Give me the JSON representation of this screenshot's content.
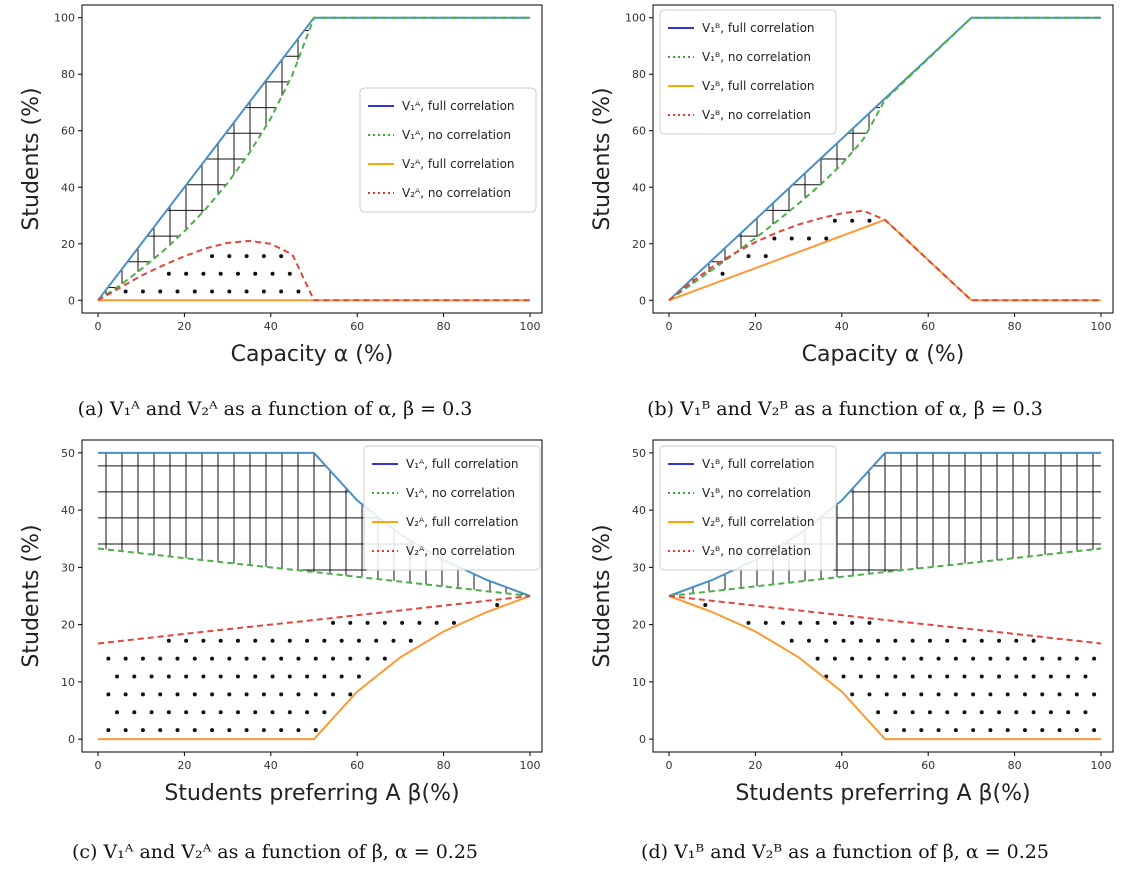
{
  "chart_data": [
    {
      "type": "line",
      "panel": "a",
      "caption": "(a) V₁ᴬ and V₂ᴬ as a function of α, β = 0.3",
      "xlabel": "Capacity α (%)",
      "ylabel": "Students (%)",
      "xlim": [
        0,
        100
      ],
      "ylim": [
        0,
        100
      ],
      "xticks": [
        0,
        20,
        40,
        60,
        80,
        100
      ],
      "yticks": [
        0,
        20,
        40,
        60,
        80,
        100
      ],
      "legend_position": "center-right",
      "legend": [
        "V₁ᴬ, full correlation",
        "V₁ᴬ, no correlation",
        "V₂ᴬ, full correlation",
        "V₂ᴬ, no correlation"
      ],
      "series": [
        {
          "name": "V₁ᴬ, full correlation",
          "color": "#4a90c4",
          "x": [
            0,
            50,
            100
          ],
          "y": [
            0,
            100,
            100
          ]
        },
        {
          "name": "V₁ᴬ, no correlation",
          "color": "#4daf4a",
          "x": [
            0,
            5,
            10,
            15,
            20,
            25,
            30,
            35,
            40,
            45,
            50,
            100
          ],
          "y": [
            0,
            5.2,
            11,
            17.3,
            24.4,
            32.4,
            41.5,
            52,
            64.4,
            79.8,
            100,
            100
          ]
        },
        {
          "name": "V₂ᴬ, full correlation",
          "color": "#ff9933",
          "x": [
            0,
            100
          ],
          "y": [
            0,
            0
          ]
        },
        {
          "name": "V₂ᴬ, no correlation",
          "color": "#e0463c",
          "x": [
            0,
            5,
            10,
            15,
            20,
            25,
            30,
            35,
            40,
            45,
            50,
            100
          ],
          "y": [
            0,
            4.4,
            8.7,
            12.3,
            15.6,
            18.4,
            20.3,
            21,
            20,
            16.2,
            0,
            0
          ]
        }
      ],
      "hatch": [
        {
          "pattern": "grid",
          "between": [
            0,
            1
          ],
          "x_range": [
            0,
            50
          ]
        },
        {
          "pattern": "dots",
          "between": [
            3,
            2
          ],
          "x_range": [
            0,
            50
          ]
        }
      ]
    },
    {
      "type": "line",
      "panel": "b",
      "caption": "(b) V₁ᴮ and V₂ᴮ as a function of α, β = 0.3",
      "xlabel": "Capacity α (%)",
      "ylabel": "Students (%)",
      "xlim": [
        0,
        100
      ],
      "ylim": [
        0,
        100
      ],
      "xticks": [
        0,
        20,
        40,
        60,
        80,
        100
      ],
      "yticks": [
        0,
        20,
        40,
        60,
        80,
        100
      ],
      "legend_position": "top-left",
      "legend": [
        "V₁ᴮ, full correlation",
        "V₁ᴮ, no correlation",
        "V₂ᴮ, full correlation",
        "V₂ᴮ, no correlation"
      ],
      "series": [
        {
          "name": "V₁ᴮ, full correlation",
          "color": "#4a90c4",
          "x": [
            0,
            70,
            100
          ],
          "y": [
            0,
            100,
            100
          ]
        },
        {
          "name": "V₁ᴮ, no correlation",
          "color": "#4daf4a",
          "x": [
            0,
            5,
            10,
            15,
            20,
            25,
            30,
            35,
            40,
            45,
            50,
            70,
            100
          ],
          "y": [
            0,
            5.4,
            10.8,
            16.3,
            22,
            28,
            34.2,
            40.8,
            48.2,
            57,
            71,
            100,
            100
          ]
        },
        {
          "name": "V₂ᴮ, full correlation",
          "color": "#ff9933",
          "x": [
            0,
            50,
            70,
            100
          ],
          "y": [
            0,
            28.5,
            0,
            0
          ]
        },
        {
          "name": "V₂ᴮ, no correlation",
          "color": "#e0463c",
          "x": [
            0,
            5,
            10,
            15,
            20,
            25,
            30,
            35,
            40,
            45,
            50,
            70,
            100
          ],
          "y": [
            0,
            6.2,
            11.8,
            16.5,
            20.6,
            24,
            26.8,
            29,
            30.8,
            31.7,
            28.5,
            0,
            0
          ]
        }
      ],
      "hatch": [
        {
          "pattern": "grid",
          "between": [
            0,
            1
          ],
          "x_range": [
            0,
            50
          ]
        },
        {
          "pattern": "dots",
          "between": [
            3,
            2
          ],
          "x_range": [
            0,
            50
          ]
        }
      ]
    },
    {
      "type": "line",
      "panel": "c",
      "caption": "(c) V₁ᴬ and V₂ᴬ as a function of β, α = 0.25",
      "xlabel": "Students preferring A β(%)",
      "ylabel": "Students (%)",
      "xlim": [
        0,
        100
      ],
      "ylim": [
        0,
        50
      ],
      "xticks": [
        0,
        20,
        40,
        60,
        80,
        100
      ],
      "yticks": [
        0,
        10,
        20,
        30,
        40,
        50
      ],
      "legend_position": "top-right",
      "legend": [
        "V₁ᴬ, full correlation",
        "V₁ᴬ, no correlation",
        "V₂ᴬ, full correlation",
        "V₂ᴬ, no correlation"
      ],
      "series": [
        {
          "name": "V₁ᴬ, full correlation",
          "color": "#4a90c4",
          "x": [
            0,
            50,
            60,
            70,
            80,
            90,
            100
          ],
          "y": [
            50,
            50,
            41.7,
            35.7,
            31.3,
            27.8,
            25
          ]
        },
        {
          "name": "V₁ᴬ, no correlation",
          "color": "#4daf4a",
          "x": [
            0,
            25,
            50,
            75,
            100
          ],
          "y": [
            33.3,
            31.2,
            29.2,
            27.1,
            25
          ]
        },
        {
          "name": "V₂ᴬ, full correlation",
          "color": "#ff9933",
          "x": [
            0,
            50,
            60,
            70,
            80,
            90,
            100
          ],
          "y": [
            0,
            0,
            8.3,
            14.3,
            18.8,
            22.2,
            25
          ]
        },
        {
          "name": "V₂ᴬ, no correlation",
          "color": "#e0463c",
          "x": [
            0,
            25,
            50,
            75,
            100
          ],
          "y": [
            16.7,
            18.8,
            20.8,
            22.9,
            25
          ]
        }
      ],
      "hatch": [
        {
          "pattern": "grid",
          "between": [
            0,
            1
          ],
          "x_range": [
            0,
            100
          ]
        },
        {
          "pattern": "dots",
          "between": [
            3,
            2
          ],
          "x_range": [
            0,
            100
          ]
        }
      ]
    },
    {
      "type": "line",
      "panel": "d",
      "caption": "(d) V₁ᴮ and V₂ᴮ as a function of β, α = 0.25",
      "xlabel": "Students preferring A β(%)",
      "ylabel": "Students (%)",
      "xlim": [
        0,
        100
      ],
      "ylim": [
        0,
        50
      ],
      "xticks": [
        0,
        20,
        40,
        60,
        80,
        100
      ],
      "yticks": [
        0,
        10,
        20,
        30,
        40,
        50
      ],
      "legend_position": "top-left",
      "legend": [
        "V₁ᴮ, full correlation",
        "V₁ᴮ, no correlation",
        "V₂ᴮ, full correlation",
        "V₂ᴮ, no correlation"
      ],
      "series": [
        {
          "name": "V₁ᴮ, full correlation",
          "color": "#4a90c4",
          "x": [
            0,
            10,
            20,
            30,
            40,
            50,
            100
          ],
          "y": [
            25,
            27.8,
            31.3,
            35.7,
            41.7,
            50,
            50
          ]
        },
        {
          "name": "V₁ᴮ, no correlation",
          "color": "#4daf4a",
          "x": [
            0,
            25,
            50,
            75,
            100
          ],
          "y": [
            25,
            27.1,
            29.2,
            31.2,
            33.3
          ]
        },
        {
          "name": "V₂ᴮ, full correlation",
          "color": "#ff9933",
          "x": [
            0,
            10,
            20,
            30,
            40,
            50,
            100
          ],
          "y": [
            25,
            22.2,
            18.8,
            14.3,
            8.3,
            0,
            0
          ]
        },
        {
          "name": "V₂ᴮ, no correlation",
          "color": "#e0463c",
          "x": [
            0,
            25,
            50,
            75,
            100
          ],
          "y": [
            25,
            22.9,
            20.8,
            18.8,
            16.7
          ]
        }
      ],
      "hatch": [
        {
          "pattern": "grid",
          "between": [
            0,
            1
          ],
          "x_range": [
            0,
            100
          ]
        },
        {
          "pattern": "dots",
          "between": [
            3,
            2
          ],
          "x_range": [
            0,
            100
          ]
        }
      ]
    }
  ]
}
